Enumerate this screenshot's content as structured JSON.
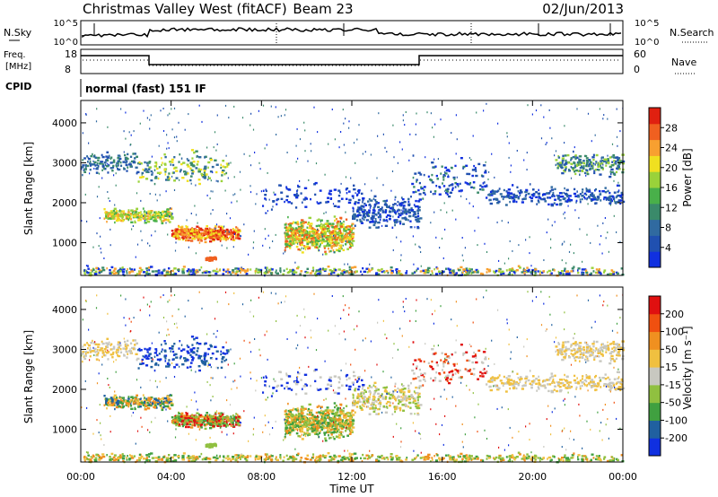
{
  "header": {
    "title": "Christmas Valley West (fitACF)",
    "beam": "Beam 23",
    "date": "02/Jun/2013"
  },
  "top_panel": {
    "left_label": "N.Sky",
    "right_label": "N.Search",
    "left_ticks": [
      "10^5",
      "10^0"
    ],
    "right_ticks": [
      "10^5",
      "10^0"
    ]
  },
  "freq_panel": {
    "left_label_1": "Freq.",
    "left_label_2": "[MHz]",
    "right_label": "Nave",
    "left_ticks": [
      "18",
      "8"
    ],
    "right_ticks": [
      "60",
      "0"
    ]
  },
  "cpid": {
    "label": "CPID",
    "text": "normal (fast) 151 IF"
  },
  "colors": {
    "power_scale": [
      "#1030e0",
      "#2050b0",
      "#306aa0",
      "#3a8a6a",
      "#49b04a",
      "#9ad23a",
      "#f0e020",
      "#f8a030",
      "#f06020",
      "#e02010"
    ],
    "velocity_scale": [
      "#1030e0",
      "#2060a0",
      "#40a040",
      "#90c040",
      "#c8c8c0",
      "#f0c040",
      "#f09020",
      "#f05010",
      "#e01010"
    ]
  },
  "chart_data": [
    {
      "type": "heatmap",
      "name": "power",
      "ylabel": "Slant Range [km]",
      "ylim": [
        180,
        4560
      ],
      "xlim_hours": [
        0,
        24
      ],
      "yticks": [
        "1000",
        "2000",
        "3000",
        "4000"
      ],
      "colorbar": {
        "label": "Power [dB]",
        "range": [
          0,
          32
        ],
        "ticks": [
          "4",
          "8",
          "12",
          "16",
          "20",
          "24",
          "28"
        ]
      }
    },
    {
      "type": "heatmap",
      "name": "velocity",
      "ylabel": "Slant Range [km]",
      "ylim": [
        180,
        4560
      ],
      "xlim_hours": [
        0,
        24
      ],
      "yticks": [
        "1000",
        "2000",
        "3000",
        "4000"
      ],
      "xlabel": "Time UT",
      "xticks": [
        "00:00",
        "04:00",
        "08:00",
        "12:00",
        "16:00",
        "20:00",
        "00:00"
      ],
      "colorbar": {
        "label": "Velocity [m s⁻¹]",
        "ticks": [
          "200",
          "100",
          "50",
          "15",
          "-15",
          "-50",
          "-100",
          "-200"
        ]
      }
    }
  ]
}
